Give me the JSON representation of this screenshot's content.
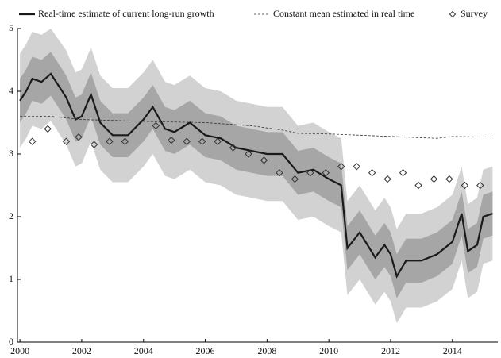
{
  "chart_data": {
    "type": "line",
    "xlim": [
      1999.92,
      2015.47
    ],
    "ylim": [
      0,
      5
    ],
    "xticks": [
      2000,
      2002,
      2004,
      2006,
      2008,
      2010,
      2012,
      2014
    ],
    "yticks": [
      0,
      1,
      2,
      3,
      4,
      5
    ],
    "bands": [
      {
        "color": "#d2d2d2",
        "upper": [
          4.6,
          4.75,
          4.95,
          4.9,
          5.0,
          4.65,
          4.3,
          4.35,
          4.7,
          4.25,
          4.05,
          4.05,
          4.3,
          4.5,
          4.15,
          4.1,
          4.25,
          4.05,
          4.0,
          3.85,
          3.8,
          3.75,
          3.75,
          3.45,
          3.5,
          3.35,
          3.25,
          2.25,
          2.5,
          2.1,
          2.3,
          2.15,
          1.8,
          2.05,
          2.05,
          2.15,
          2.35,
          2.8,
          2.2,
          2.3,
          2.75,
          2.8
        ],
        "lower": [
          3.1,
          3.25,
          3.45,
          3.4,
          3.53,
          3.15,
          2.8,
          2.85,
          3.2,
          2.75,
          2.55,
          2.55,
          2.8,
          3.0,
          2.65,
          2.6,
          2.75,
          2.55,
          2.5,
          2.35,
          2.3,
          2.25,
          2.25,
          1.95,
          2.0,
          1.85,
          1.75,
          0.75,
          1.0,
          0.6,
          0.8,
          0.65,
          0.3,
          0.55,
          0.55,
          0.65,
          0.85,
          1.3,
          0.7,
          0.8,
          1.25,
          1.3
        ]
      },
      {
        "color": "#a6a6a6",
        "upper": [
          4.2,
          4.35,
          4.55,
          4.5,
          4.63,
          4.25,
          3.9,
          3.95,
          4.3,
          3.85,
          3.65,
          3.65,
          3.9,
          4.1,
          3.75,
          3.7,
          3.85,
          3.65,
          3.6,
          3.45,
          3.4,
          3.35,
          3.35,
          3.05,
          3.1,
          2.95,
          2.85,
          1.85,
          2.1,
          1.7,
          1.9,
          1.75,
          1.4,
          1.65,
          1.65,
          1.75,
          1.95,
          2.4,
          1.8,
          1.9,
          2.35,
          2.4
        ],
        "lower": [
          3.5,
          3.65,
          3.85,
          3.8,
          3.93,
          3.55,
          3.2,
          3.25,
          3.6,
          3.15,
          2.95,
          2.95,
          3.2,
          3.4,
          3.05,
          3.0,
          3.15,
          2.95,
          2.9,
          2.75,
          2.7,
          2.65,
          2.65,
          2.35,
          2.4,
          2.25,
          2.15,
          1.15,
          1.4,
          1.0,
          1.2,
          1.05,
          0.7,
          0.95,
          0.95,
          1.05,
          1.25,
          1.7,
          1.1,
          1.2,
          1.65,
          1.7
        ]
      }
    ],
    "series": [
      {
        "name": "Real-time estimate of current long-run growth",
        "style": "solid",
        "color": "#1a1a1a",
        "x": [
          2000.0,
          2000.2,
          2000.4,
          2000.7,
          2001.0,
          2001.5,
          2001.8,
          2002.0,
          2002.3,
          2002.6,
          2003.0,
          2003.5,
          2004.0,
          2004.3,
          2004.7,
          2005.0,
          2005.5,
          2006.0,
          2006.5,
          2007.0,
          2007.5,
          2008.0,
          2008.5,
          2009.0,
          2009.5,
          2010.0,
          2010.4,
          2010.6,
          2011.0,
          2011.5,
          2011.8,
          2012.0,
          2012.2,
          2012.5,
          2013.0,
          2013.5,
          2014.0,
          2014.3,
          2014.5,
          2014.8,
          2015.0,
          2015.3
        ],
        "values": [
          3.85,
          4.0,
          4.2,
          4.15,
          4.28,
          3.9,
          3.55,
          3.6,
          3.95,
          3.5,
          3.3,
          3.3,
          3.55,
          3.75,
          3.4,
          3.35,
          3.5,
          3.3,
          3.25,
          3.1,
          3.05,
          3.0,
          3.0,
          2.7,
          2.75,
          2.6,
          2.5,
          1.5,
          1.75,
          1.35,
          1.55,
          1.4,
          1.05,
          1.3,
          1.3,
          1.4,
          1.6,
          2.05,
          1.45,
          1.55,
          2.0,
          2.05
        ]
      },
      {
        "name": "Constant mean estimated in real time",
        "style": "dashed",
        "color": "#333333",
        "x": [
          2000.0,
          2001.0,
          2002.0,
          2004.0,
          2006.0,
          2007.5,
          2008.5,
          2009.0,
          2010.0,
          2012.0,
          2013.5,
          2014.0,
          2015.3
        ],
        "values": [
          3.6,
          3.6,
          3.55,
          3.52,
          3.5,
          3.45,
          3.38,
          3.33,
          3.32,
          3.28,
          3.25,
          3.28,
          3.27
        ]
      },
      {
        "name": "Survey",
        "style": "diamond",
        "color": "#333333",
        "x": [
          2000.4,
          2000.9,
          2001.5,
          2001.9,
          2002.4,
          2002.9,
          2003.4,
          2004.4,
          2004.9,
          2005.4,
          2005.9,
          2006.4,
          2006.9,
          2007.4,
          2007.9,
          2008.4,
          2008.9,
          2009.4,
          2009.9,
          2010.4,
          2010.9,
          2011.4,
          2011.9,
          2012.4,
          2012.9,
          2013.4,
          2013.9,
          2014.4,
          2014.9
        ],
        "values": [
          3.2,
          3.4,
          3.2,
          3.27,
          3.15,
          3.2,
          3.2,
          3.45,
          3.22,
          3.2,
          3.2,
          3.2,
          3.1,
          3.0,
          2.9,
          2.7,
          2.6,
          2.7,
          2.7,
          2.8,
          2.8,
          2.7,
          2.6,
          2.7,
          2.5,
          2.6,
          2.6,
          2.5,
          2.5
        ]
      }
    ]
  }
}
